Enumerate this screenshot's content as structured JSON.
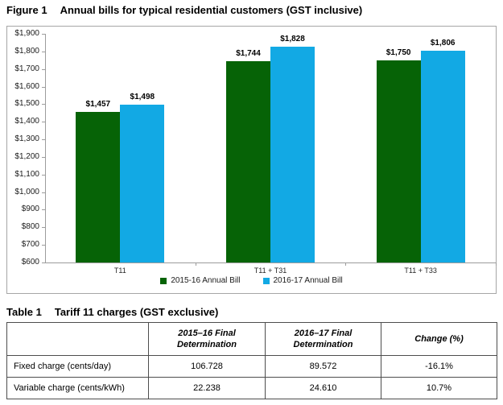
{
  "figure": {
    "label": "Figure 1",
    "title": "Annual bills for typical residential customers (GST inclusive)"
  },
  "table": {
    "label": "Table 1",
    "title": "Tariff 11 charges (GST exclusive)"
  },
  "colors": {
    "series_2015_16": "#066306",
    "series_2016_17": "#12a9e4",
    "axis": "#9c9c9c",
    "chart_border": "#a6a6a6",
    "table_border": "#4d4d4d"
  },
  "chart_data": [
    {
      "type": "bar",
      "title": "Annual bills for typical residential customers (GST inclusive)",
      "categories": [
        "T11",
        "T11 + T31",
        "T11 + T33"
      ],
      "series": [
        {
          "name": "2015-16 Annual Bill",
          "color": "#066306",
          "values": [
            1457,
            1744,
            1750
          ],
          "labels": [
            "$1,457",
            "$1,744",
            "$1,750"
          ]
        },
        {
          "name": "2016-17 Annual Bill",
          "color": "#12a9e4",
          "values": [
            1498,
            1828,
            1806
          ],
          "labels": [
            "$1,498",
            "$1,828",
            "$1,806"
          ]
        }
      ],
      "xlabel": "",
      "ylabel": "",
      "ylim": [
        600,
        1900
      ],
      "y_step": 100,
      "y_tick_prefix": "$",
      "grid": false,
      "legend_position": "bottom"
    },
    {
      "type": "table",
      "title": "Tariff 11 charges (GST exclusive)",
      "columns": [
        "",
        "2015–16 Final\nDetermination",
        "2016–17 Final\nDetermination",
        "Change (%)"
      ],
      "rows": [
        [
          "Fixed charge (cents/day)",
          "106.728",
          "89.572",
          "-16.1%"
        ],
        [
          "Variable charge (cents/kWh)",
          "22.238",
          "24.610",
          "10.7%"
        ]
      ]
    }
  ]
}
